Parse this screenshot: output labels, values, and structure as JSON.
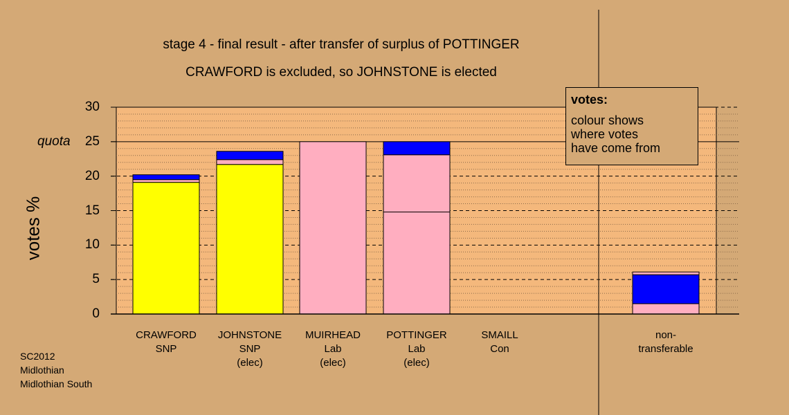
{
  "titles": {
    "line1": "stage 4 - final result - after transfer of surplus of POTTINGER",
    "line2": "CRAWFORD is excluded, so JOHNSTONE is elected"
  },
  "legend": {
    "title": "votes:",
    "lines": [
      "colour shows",
      "where votes",
      "have come from"
    ]
  },
  "source": [
    "SC2012",
    "Midlothian",
    "Midlothian South"
  ],
  "colors": {
    "background": "#d4a976",
    "plot_background": "#f4b87c",
    "snp": "#ffff00",
    "lab": "#ffaec0",
    "con": "#0000ff"
  },
  "chart_data": {
    "type": "bar",
    "stacked": true,
    "ylabel": "votes %",
    "ylim": [
      0,
      30
    ],
    "yticks": [
      0,
      5,
      10,
      15,
      20,
      25,
      30
    ],
    "quota": {
      "label": "quota",
      "value": 25
    },
    "grid": true,
    "categories": [
      {
        "name": "CRAWFORD",
        "party": "SNP",
        "status": ""
      },
      {
        "name": "JOHNSTONE",
        "party": "SNP",
        "status": "(elec)"
      },
      {
        "name": "MUIRHEAD",
        "party": "Lab",
        "status": "(elec)"
      },
      {
        "name": "POTTINGER",
        "party": "Lab",
        "status": "(elec)"
      },
      {
        "name": "SMAILL",
        "party": "Con",
        "status": ""
      },
      {
        "name": "non-",
        "party": "transferable",
        "status": ""
      }
    ],
    "bars": [
      {
        "category": "CRAWFORD",
        "segments": [
          {
            "from": "SNP",
            "value": 19.1
          },
          {
            "from": "Lab",
            "value": 0.4
          },
          {
            "from": "Con",
            "value": 0.7
          }
        ]
      },
      {
        "category": "JOHNSTONE",
        "segments": [
          {
            "from": "SNP",
            "value": 21.7
          },
          {
            "from": "Lab",
            "value": 0.7
          },
          {
            "from": "Con",
            "value": 1.2
          }
        ]
      },
      {
        "category": "MUIRHEAD",
        "segments": [
          {
            "from": "Lab",
            "value": 25.0
          }
        ]
      },
      {
        "category": "POTTINGER",
        "segments": [
          {
            "from": "Lab",
            "value": 14.8
          },
          {
            "from": "Lab",
            "value": 8.3
          },
          {
            "from": "Con",
            "value": 1.9
          }
        ]
      },
      {
        "category": "SMAILL",
        "segments": []
      },
      {
        "category": "non-transferable",
        "segments": [
          {
            "from": "Lab",
            "value": 1.5
          },
          {
            "from": "Con",
            "value": 4.2
          },
          {
            "from": "Lab",
            "value": 0.4
          }
        ]
      }
    ]
  }
}
